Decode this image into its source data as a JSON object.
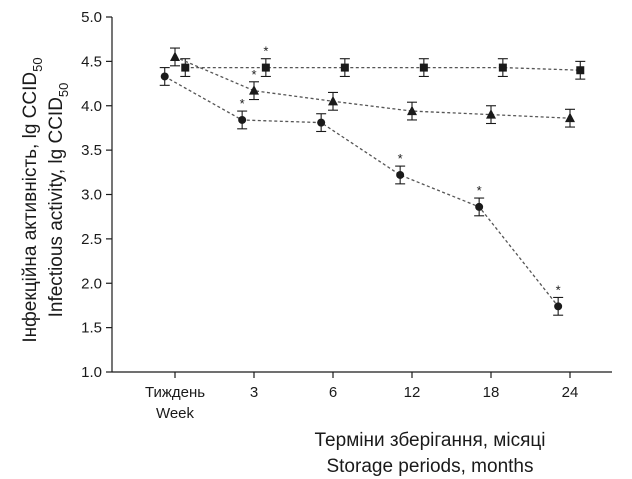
{
  "chart_data": {
    "type": "line",
    "categories": [
      {
        "line1": "Тиждень",
        "line2": "Week"
      },
      {
        "line1": "3",
        "line2": ""
      },
      {
        "line1": "6",
        "line2": ""
      },
      {
        "line1": "12",
        "line2": ""
      },
      {
        "line1": "18",
        "line2": ""
      },
      {
        "line1": "24",
        "line2": ""
      }
    ],
    "xlabel": {
      "line1": "Терміни зберігання, місяці",
      "line2": "Storage periods, months"
    },
    "ylabel": {
      "line1": "Інфекційна активність, lg CCID",
      "line2": "Infectious activity, lg CCID",
      "subscript": "50"
    },
    "ylim": [
      1.0,
      5.0
    ],
    "yticks": [
      "1.0",
      "1.5",
      "2.0",
      "2.5",
      "3.0",
      "3.5",
      "4.0",
      "4.5",
      "5.0"
    ],
    "significance_mark": "*",
    "series": [
      {
        "marker": "square",
        "x": [
          0.13,
          1.15,
          2.15,
          3.15,
          4.15,
          5.13
        ],
        "values": [
          4.43,
          4.43,
          4.43,
          4.43,
          4.43,
          4.4
        ],
        "errors": [
          0.1,
          0.1,
          0.1,
          0.1,
          0.1,
          0.1
        ],
        "significant": [
          false,
          true,
          false,
          false,
          false,
          false
        ]
      },
      {
        "marker": "triangle",
        "x": [
          0.0,
          1.0,
          2.0,
          3.0,
          4.0,
          5.0
        ],
        "values": [
          4.55,
          4.17,
          4.05,
          3.94,
          3.9,
          3.86
        ],
        "errors": [
          0.1,
          0.1,
          0.1,
          0.1,
          0.1,
          0.1
        ],
        "significant": [
          false,
          true,
          false,
          false,
          false,
          false
        ]
      },
      {
        "marker": "circle",
        "x": [
          -0.13,
          0.85,
          1.85,
          2.85,
          3.85,
          4.85
        ],
        "values": [
          4.33,
          3.84,
          3.81,
          3.22,
          2.86,
          1.74
        ],
        "errors": [
          0.1,
          0.1,
          0.1,
          0.1,
          0.1,
          0.1
        ],
        "significant": [
          false,
          true,
          false,
          true,
          true,
          true
        ]
      }
    ],
    "legend": "none",
    "grid": false,
    "line_style": "dotted",
    "colors": {
      "marks": "#1a1a1a",
      "lines": "#555555"
    }
  }
}
